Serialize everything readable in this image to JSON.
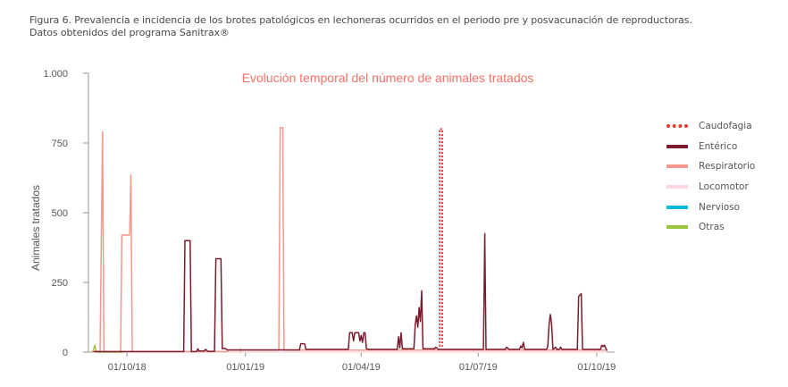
{
  "caption": {
    "line1": "Figura 6. Prevalencia e incidencia de los brotes patológicos en lechoneras ocurridos en el periodo pre y posvacunación de reproductoras.",
    "line2": "Datos obtenidos del programa Sanitrax®"
  },
  "chart_data": {
    "type": "line",
    "title": "Evolución temporal del número de animales tratados",
    "ylabel": "Animales tratados",
    "xlabel": "",
    "ylim": [
      0,
      1000
    ],
    "xlim": [
      "2018-09-01",
      "2019-10-15"
    ],
    "yticks": [
      {
        "value": 0,
        "label": "0"
      },
      {
        "value": 250,
        "label": "250"
      },
      {
        "value": 500,
        "label": "500"
      },
      {
        "value": 750,
        "label": "750"
      },
      {
        "value": 1000,
        "label": "1.000"
      }
    ],
    "xticks": [
      {
        "value": "2018-10-01",
        "label": "01/10/18"
      },
      {
        "value": "2019-01-01",
        "label": "01/01/19"
      },
      {
        "value": "2019-04-01",
        "label": "01/04/19"
      },
      {
        "value": "2019-07-01",
        "label": "01/07/19"
      },
      {
        "value": "2019-10-01",
        "label": "01/10/19"
      }
    ],
    "grid": false,
    "legend_position": "right",
    "series": [
      {
        "name": "Caudofagia",
        "color": "#e53935",
        "style": "dotted",
        "points": [
          [
            "2019-06-01",
            20
          ],
          [
            "2019-06-01",
            800
          ],
          [
            "2019-06-03",
            800
          ],
          [
            "2019-06-03",
            20
          ]
        ]
      },
      {
        "name": "Entérico",
        "color": "#7b1c2e",
        "style": "solid",
        "points": [
          [
            "2018-09-05",
            2
          ],
          [
            "2018-11-14",
            2
          ],
          [
            "2018-11-15",
            400
          ],
          [
            "2018-11-19",
            400
          ],
          [
            "2018-11-20",
            2
          ],
          [
            "2018-11-24",
            2
          ],
          [
            "2018-11-25",
            12
          ],
          [
            "2018-11-26",
            4
          ],
          [
            "2018-11-30",
            4
          ],
          [
            "2018-12-01",
            10
          ],
          [
            "2018-12-03",
            3
          ],
          [
            "2018-12-08",
            3
          ],
          [
            "2018-12-09",
            335
          ],
          [
            "2018-12-13",
            335
          ],
          [
            "2018-12-14",
            12
          ],
          [
            "2018-12-16",
            14
          ],
          [
            "2018-12-18",
            8
          ],
          [
            "2019-02-12",
            8
          ],
          [
            "2019-02-13",
            30
          ],
          [
            "2019-02-16",
            30
          ],
          [
            "2019-02-17",
            10
          ],
          [
            "2019-03-22",
            10
          ],
          [
            "2019-03-23",
            70
          ],
          [
            "2019-03-25",
            70
          ],
          [
            "2019-03-26",
            40
          ],
          [
            "2019-03-27",
            70
          ],
          [
            "2019-03-30",
            70
          ],
          [
            "2019-03-31",
            40
          ],
          [
            "2019-04-01",
            60
          ],
          [
            "2019-04-02",
            35
          ],
          [
            "2019-04-03",
            70
          ],
          [
            "2019-04-04",
            70
          ],
          [
            "2019-04-05",
            12
          ],
          [
            "2019-04-07",
            10
          ],
          [
            "2019-04-29",
            10
          ],
          [
            "2019-04-30",
            55
          ],
          [
            "2019-05-01",
            15
          ],
          [
            "2019-05-02",
            70
          ],
          [
            "2019-05-03",
            12
          ],
          [
            "2019-05-12",
            12
          ],
          [
            "2019-05-13",
            100
          ],
          [
            "2019-05-14",
            130
          ],
          [
            "2019-05-15",
            90
          ],
          [
            "2019-05-16",
            160
          ],
          [
            "2019-05-17",
            110
          ],
          [
            "2019-05-18",
            220
          ],
          [
            "2019-05-19",
            12
          ],
          [
            "2019-05-28",
            12
          ],
          [
            "2019-05-29",
            18
          ],
          [
            "2019-05-31",
            10
          ],
          [
            "2019-07-05",
            10
          ],
          [
            "2019-07-06",
            425
          ],
          [
            "2019-07-07",
            10
          ],
          [
            "2019-07-22",
            10
          ],
          [
            "2019-07-23",
            18
          ],
          [
            "2019-07-25",
            10
          ],
          [
            "2019-08-02",
            10
          ],
          [
            "2019-08-03",
            22
          ],
          [
            "2019-08-04",
            15
          ],
          [
            "2019-08-05",
            35
          ],
          [
            "2019-08-06",
            10
          ],
          [
            "2019-08-23",
            10
          ],
          [
            "2019-08-24",
            20
          ],
          [
            "2019-08-25",
            100
          ],
          [
            "2019-08-26",
            135
          ],
          [
            "2019-08-27",
            100
          ],
          [
            "2019-08-28",
            10
          ],
          [
            "2019-08-30",
            18
          ],
          [
            "2019-08-31",
            10
          ],
          [
            "2019-09-02",
            10
          ],
          [
            "2019-09-03",
            18
          ],
          [
            "2019-09-04",
            10
          ],
          [
            "2019-09-16",
            10
          ],
          [
            "2019-09-17",
            200
          ],
          [
            "2019-09-19",
            210
          ],
          [
            "2019-09-20",
            10
          ],
          [
            "2019-10-04",
            10
          ],
          [
            "2019-10-05",
            25
          ],
          [
            "2019-10-06",
            20
          ],
          [
            "2019-10-07",
            25
          ],
          [
            "2019-10-09",
            5
          ]
        ]
      },
      {
        "name": "Respiratorio",
        "color": "#f4978e",
        "style": "solid",
        "points": [
          [
            "2018-09-03",
            2
          ],
          [
            "2018-09-10",
            2
          ],
          [
            "2018-09-12",
            790
          ],
          [
            "2018-09-13",
            2
          ],
          [
            "2018-09-26",
            2
          ],
          [
            "2018-09-27",
            420
          ],
          [
            "2018-10-03",
            420
          ],
          [
            "2018-10-04",
            635
          ],
          [
            "2018-10-05",
            2
          ],
          [
            "2018-12-01",
            2
          ],
          [
            "2018-12-18",
            2
          ],
          [
            "2018-12-19",
            7
          ],
          [
            "2019-01-27",
            7
          ],
          [
            "2019-01-28",
            805
          ],
          [
            "2019-01-30",
            805
          ],
          [
            "2019-01-31",
            7
          ],
          [
            "2019-10-09",
            7
          ]
        ]
      },
      {
        "name": "Locomotor",
        "color": "#f8d7de",
        "style": "solid",
        "points": [
          [
            "2018-09-05",
            0
          ],
          [
            "2018-12-27",
            0
          ],
          [
            "2018-12-28",
            15
          ],
          [
            "2018-12-29",
            0
          ],
          [
            "2019-10-09",
            0
          ]
        ]
      },
      {
        "name": "Nervioso",
        "color": "#00bcd4",
        "style": "solid",
        "points": []
      },
      {
        "name": "Otras",
        "color": "#9bc53d",
        "style": "solid",
        "points": [
          [
            "2018-09-04",
            0
          ],
          [
            "2018-09-05",
            10
          ],
          [
            "2018-09-06",
            25
          ],
          [
            "2018-09-07",
            3
          ],
          [
            "2018-09-08",
            0
          ],
          [
            "2018-09-27",
            0
          ],
          [
            "2018-09-28",
            2
          ],
          [
            "2018-09-29",
            0
          ]
        ]
      }
    ]
  }
}
